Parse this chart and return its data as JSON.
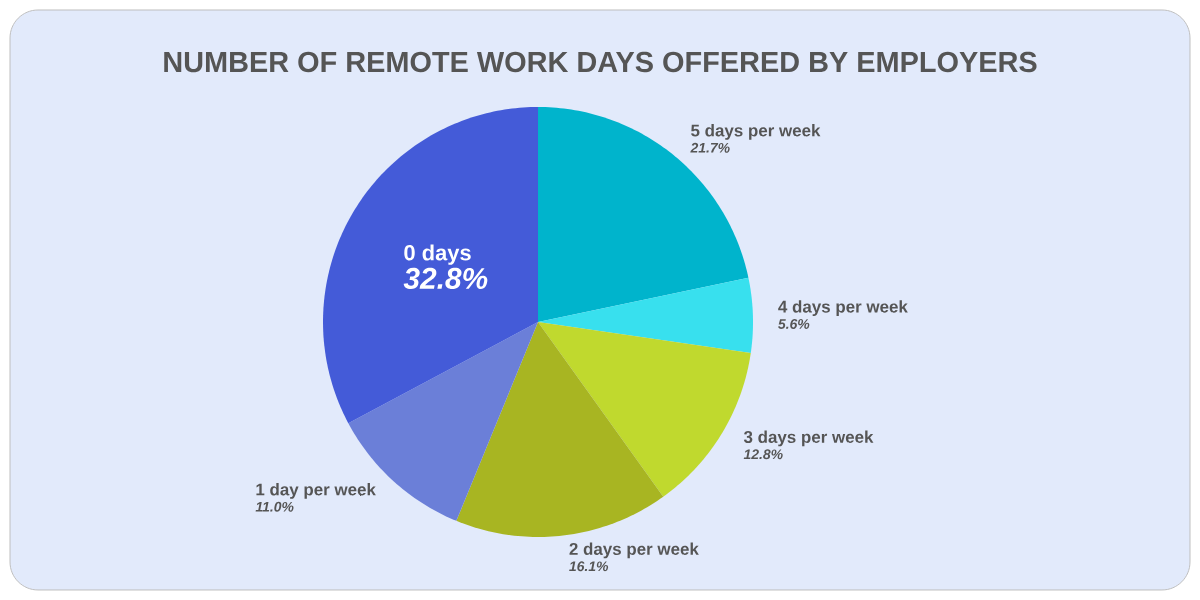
{
  "chart_data": {
    "type": "pie",
    "title": "NUMBER OF REMOTE WORK DAYS OFFERED BY EMPLOYERS",
    "categories": [
      "5 days per week",
      "4 days per week",
      "3 days per week",
      "2 days per week",
      "1 day per week",
      "0 days"
    ],
    "values": [
      21.7,
      5.6,
      12.8,
      16.1,
      11.0,
      32.8
    ],
    "colors": [
      "#00b4cc",
      "#38e0ee",
      "#c0d92e",
      "#a8b522",
      "#6b7fd8",
      "#445bd8"
    ],
    "value_labels": [
      "21.7%",
      "5.6%",
      "12.8%",
      "16.1%",
      "11.0%",
      "32.8%"
    ]
  }
}
